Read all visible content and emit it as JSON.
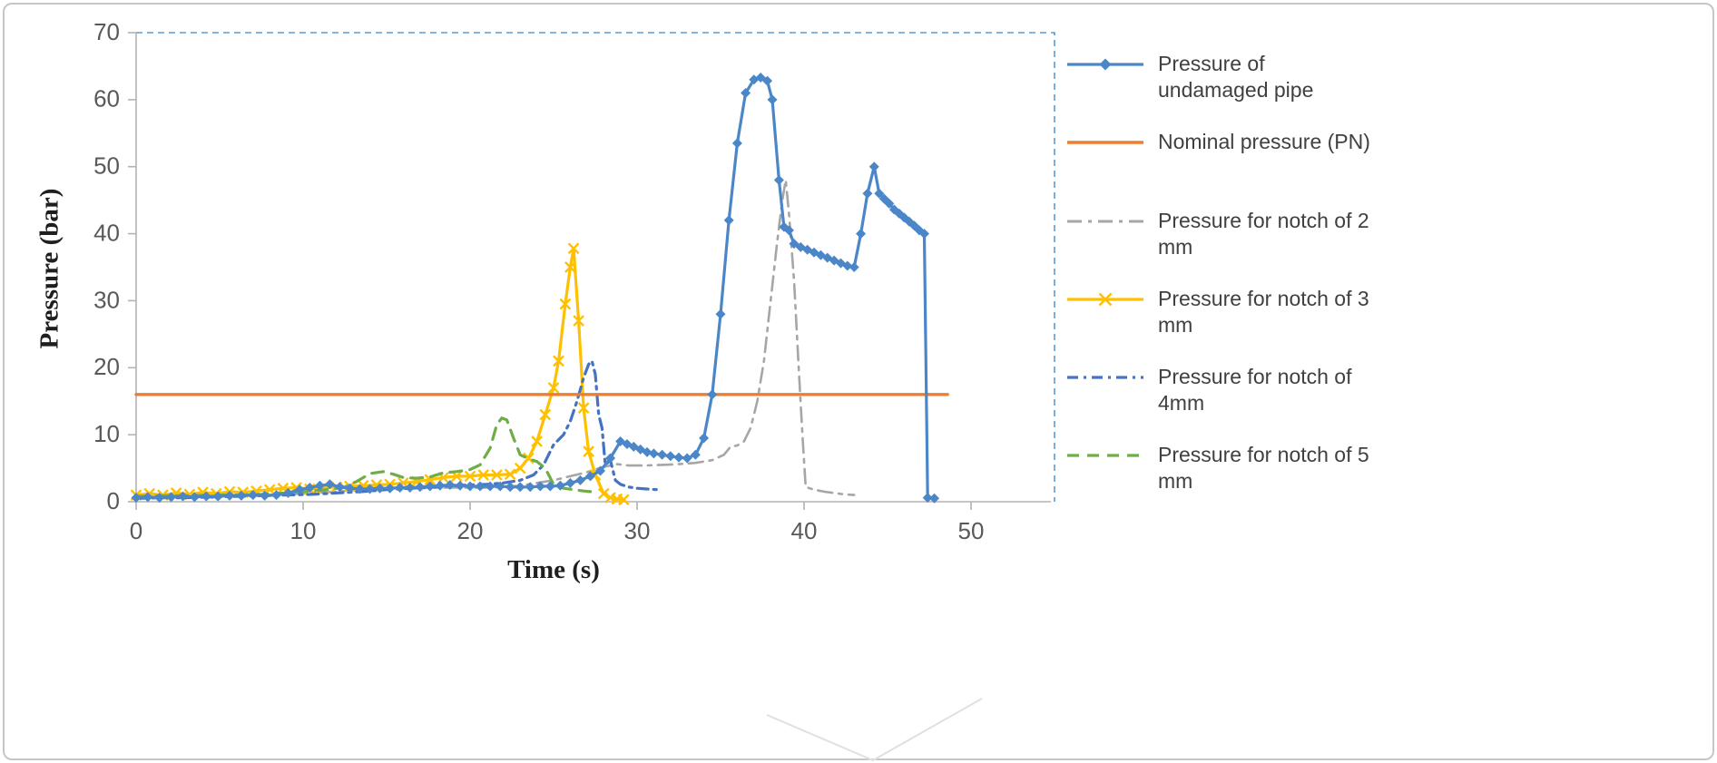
{
  "figure": {
    "background": "#ffffff",
    "frame_border_color": "#c6c6c6"
  },
  "chart_data": {
    "type": "line",
    "title": "",
    "xlabel": "Time (s)",
    "ylabel": "Pressure (bar)",
    "xlim": [
      0,
      55
    ],
    "ylim": [
      0,
      70
    ],
    "x_ticks": [
      0,
      10,
      20,
      30,
      40,
      50
    ],
    "y_ticks": [
      0,
      10,
      20,
      30,
      40,
      50,
      60,
      70
    ],
    "grid": false,
    "legend_position": "right",
    "styles": {
      "axis_line_color": "#b3b3b3",
      "tick_label_color": "#595959",
      "axis_title_color": "#1f1f1f",
      "legend_text_color": "#404040",
      "selection_border_color": "#5b9bd5",
      "watermark_color": "#e0e0e0"
    },
    "series": [
      {
        "id": "undamaged",
        "name": "Pressure of undamaged pipe",
        "label": "Pressure of\nundamaged pipe",
        "color": "#4a86c8",
        "dash": "",
        "marker": "diamond",
        "width": 3.2,
        "points": [
          [
            0,
            0.6
          ],
          [
            0.7,
            0.7
          ],
          [
            1.4,
            0.6
          ],
          [
            2.1,
            0.7
          ],
          [
            2.8,
            0.8
          ],
          [
            3.5,
            0.7
          ],
          [
            4.2,
            0.8
          ],
          [
            4.9,
            0.8
          ],
          [
            5.6,
            0.9
          ],
          [
            6.3,
            0.9
          ],
          [
            7,
            1
          ],
          [
            7.7,
            0.9
          ],
          [
            8.4,
            1
          ],
          [
            9.1,
            1.3
          ],
          [
            9.8,
            1.8
          ],
          [
            10.4,
            2.1
          ],
          [
            11,
            2.4
          ],
          [
            11.6,
            2.6
          ],
          [
            12.2,
            2.2
          ],
          [
            12.8,
            2
          ],
          [
            13.4,
            1.9
          ],
          [
            14,
            1.9
          ],
          [
            14.6,
            2
          ],
          [
            15.2,
            2
          ],
          [
            15.8,
            2.1
          ],
          [
            16.4,
            2.1
          ],
          [
            17,
            2.2
          ],
          [
            17.6,
            2.3
          ],
          [
            18.2,
            2.4
          ],
          [
            18.8,
            2.5
          ],
          [
            19.4,
            2.4
          ],
          [
            20,
            2.3
          ],
          [
            20.6,
            2.3
          ],
          [
            21.2,
            2.3
          ],
          [
            21.8,
            2.3
          ],
          [
            22.4,
            2.2
          ],
          [
            23,
            2.2
          ],
          [
            23.6,
            2.2
          ],
          [
            24.2,
            2.3
          ],
          [
            24.8,
            2.3
          ],
          [
            25.4,
            2.4
          ],
          [
            26,
            2.8
          ],
          [
            26.6,
            3.2
          ],
          [
            27.2,
            3.8
          ],
          [
            27.8,
            4.6
          ],
          [
            28.4,
            6.5
          ],
          [
            29,
            9
          ],
          [
            29.4,
            8.6
          ],
          [
            29.8,
            8.2
          ],
          [
            30.2,
            7.8
          ],
          [
            30.6,
            7.4
          ],
          [
            31,
            7.2
          ],
          [
            31.5,
            7
          ],
          [
            32,
            6.8
          ],
          [
            32.5,
            6.6
          ],
          [
            33,
            6.5
          ],
          [
            33.5,
            7
          ],
          [
            34,
            9.5
          ],
          [
            34.5,
            16
          ],
          [
            35,
            28
          ],
          [
            35.5,
            42
          ],
          [
            36,
            53.5
          ],
          [
            36.5,
            61
          ],
          [
            37,
            63
          ],
          [
            37.4,
            63.3
          ],
          [
            37.8,
            62.8
          ],
          [
            38.1,
            60
          ],
          [
            38.5,
            48
          ],
          [
            38.8,
            41
          ],
          [
            39.1,
            40.5
          ],
          [
            39.4,
            38.5
          ],
          [
            39.8,
            38
          ],
          [
            40.2,
            37.6
          ],
          [
            40.6,
            37.2
          ],
          [
            41,
            36.8
          ],
          [
            41.4,
            36.4
          ],
          [
            41.8,
            36
          ],
          [
            42.2,
            35.6
          ],
          [
            42.6,
            35.2
          ],
          [
            43,
            35
          ],
          [
            43.4,
            40
          ],
          [
            43.8,
            46
          ],
          [
            44.2,
            50
          ],
          [
            44.5,
            46
          ],
          [
            44.8,
            45.2
          ],
          [
            45.1,
            44.5
          ],
          [
            45.4,
            43.6
          ],
          [
            45.7,
            43
          ],
          [
            46,
            42.4
          ],
          [
            46.3,
            41.8
          ],
          [
            46.6,
            41.2
          ],
          [
            46.9,
            40.5
          ],
          [
            47.2,
            40
          ],
          [
            47.4,
            0.6
          ],
          [
            47.8,
            0.5
          ]
        ]
      },
      {
        "id": "nominal",
        "name": "Nominal pressure (PN)",
        "label": "Nominal pressure (PN)",
        "color": "#ed7d31",
        "dash": "",
        "marker": "none",
        "width": 3.4,
        "points": [
          [
            0,
            16
          ],
          [
            48.6,
            16
          ]
        ]
      },
      {
        "id": "notch-2mm",
        "name": "Pressure for notch of 2 mm",
        "label": "Pressure for notch of 2\nmm",
        "color": "#a6a6a6",
        "dash": "16 7 4 7",
        "marker": "none",
        "width": 2.6,
        "points": [
          [
            0,
            0.8
          ],
          [
            1.5,
            0.8
          ],
          [
            3,
            0.9
          ],
          [
            4.5,
            0.9
          ],
          [
            6,
            1
          ],
          [
            7.5,
            1
          ],
          [
            9,
            1.1
          ],
          [
            10.5,
            1.3
          ],
          [
            12,
            1.5
          ],
          [
            13.5,
            1.8
          ],
          [
            15,
            2
          ],
          [
            16.5,
            2
          ],
          [
            18,
            2.1
          ],
          [
            19.5,
            2.1
          ],
          [
            21,
            2.1
          ],
          [
            22,
            2.2
          ],
          [
            23,
            2.4
          ],
          [
            24,
            2.8
          ],
          [
            25,
            3.2
          ],
          [
            26,
            3.8
          ],
          [
            27,
            4.4
          ],
          [
            28,
            5.2
          ],
          [
            28.8,
            5.6
          ],
          [
            29.5,
            5.4
          ],
          [
            30.5,
            5.4
          ],
          [
            31.5,
            5.5
          ],
          [
            32.5,
            5.6
          ],
          [
            33.5,
            5.8
          ],
          [
            34.5,
            6.2
          ],
          [
            35.2,
            7
          ],
          [
            35.6,
            8.2
          ],
          [
            36,
            8.4
          ],
          [
            36.4,
            9
          ],
          [
            36.8,
            11
          ],
          [
            37.2,
            15
          ],
          [
            37.6,
            21
          ],
          [
            38,
            30
          ],
          [
            38.4,
            39
          ],
          [
            38.7,
            45
          ],
          [
            38.9,
            48
          ],
          [
            39.1,
            43
          ],
          [
            39.4,
            33
          ],
          [
            39.7,
            19
          ],
          [
            39.9,
            10
          ],
          [
            40.1,
            2.2
          ],
          [
            40.6,
            1.8
          ],
          [
            41.2,
            1.5
          ],
          [
            41.8,
            1.3
          ],
          [
            42.4,
            1.1
          ],
          [
            43,
            1
          ]
        ]
      },
      {
        "id": "notch-3mm",
        "name": "Pressure for notch of 3 mm",
        "label": "Pressure for notch of 3\nmm",
        "color": "#fec000",
        "dash": "",
        "marker": "x",
        "width": 3.2,
        "points": [
          [
            0,
            1
          ],
          [
            0.8,
            1.2
          ],
          [
            1.6,
            1
          ],
          [
            2.4,
            1.3
          ],
          [
            3.2,
            1.1
          ],
          [
            4,
            1.4
          ],
          [
            4.8,
            1.2
          ],
          [
            5.6,
            1.5
          ],
          [
            6.4,
            1.4
          ],
          [
            7.2,
            1.6
          ],
          [
            8,
            1.8
          ],
          [
            8.8,
            2
          ],
          [
            9.6,
            2.1
          ],
          [
            10.4,
            1.9
          ],
          [
            11.2,
            2.1
          ],
          [
            12,
            2.2
          ],
          [
            12.8,
            2.3
          ],
          [
            13.6,
            2.4
          ],
          [
            14.4,
            2.5
          ],
          [
            15.2,
            2.6
          ],
          [
            16,
            2.8
          ],
          [
            16.8,
            3
          ],
          [
            17.6,
            3.3
          ],
          [
            18.4,
            3.6
          ],
          [
            19.2,
            3.8
          ],
          [
            20,
            3.8
          ],
          [
            20.8,
            4
          ],
          [
            21.6,
            4
          ],
          [
            22.4,
            4.1
          ],
          [
            23,
            5
          ],
          [
            23.5,
            6.5
          ],
          [
            24,
            9
          ],
          [
            24.5,
            13
          ],
          [
            25,
            17
          ],
          [
            25.3,
            21
          ],
          [
            25.7,
            29.5
          ],
          [
            26,
            35
          ],
          [
            26.2,
            37.8
          ],
          [
            26.5,
            27
          ],
          [
            26.8,
            14
          ],
          [
            27.1,
            7.5
          ],
          [
            27.5,
            4
          ],
          [
            28,
            1.2
          ],
          [
            28.4,
            0.6
          ],
          [
            28.8,
            0.4
          ],
          [
            29.2,
            0.3
          ]
        ]
      },
      {
        "id": "notch-4mm",
        "name": "Pressure for notch of 4mm",
        "label": "Pressure for notch of\n4mm",
        "color": "#4472c4",
        "dash": "12 6 3 6",
        "marker": "none",
        "width": 3.2,
        "points": [
          [
            0,
            0.5
          ],
          [
            1.5,
            0.6
          ],
          [
            3,
            0.6
          ],
          [
            4.5,
            0.7
          ],
          [
            6,
            0.8
          ],
          [
            7.5,
            0.9
          ],
          [
            9,
            1
          ],
          [
            10.5,
            1.1
          ],
          [
            12,
            1.3
          ],
          [
            13.5,
            1.5
          ],
          [
            15,
            1.8
          ],
          [
            16.5,
            2
          ],
          [
            18,
            2.2
          ],
          [
            19,
            2.4
          ],
          [
            20,
            2.5
          ],
          [
            21,
            2.6
          ],
          [
            22,
            2.8
          ],
          [
            23,
            3.2
          ],
          [
            23.8,
            4
          ],
          [
            24.4,
            5.5
          ],
          [
            25,
            8.5
          ],
          [
            25.6,
            10
          ],
          [
            26,
            12
          ],
          [
            26.4,
            15
          ],
          [
            26.8,
            18.5
          ],
          [
            27.1,
            20.5
          ],
          [
            27.3,
            21
          ],
          [
            27.5,
            19
          ],
          [
            27.7,
            13
          ],
          [
            27.9,
            11
          ],
          [
            28.1,
            5.5
          ],
          [
            28.4,
            6.2
          ],
          [
            28.7,
            3.2
          ],
          [
            29,
            2.6
          ],
          [
            29.5,
            2.2
          ],
          [
            30,
            2
          ],
          [
            30.6,
            1.9
          ],
          [
            31.2,
            1.8
          ]
        ]
      },
      {
        "id": "notch-5mm",
        "name": "Pressure for notch of 5 mm",
        "label": "Pressure for notch of 5\nmm",
        "color": "#70ad47",
        "dash": "13 9",
        "marker": "none",
        "width": 3.2,
        "points": [
          [
            0,
            0.8
          ],
          [
            1.5,
            0.9
          ],
          [
            3,
            0.9
          ],
          [
            4.5,
            1
          ],
          [
            6,
            1
          ],
          [
            7.5,
            1.1
          ],
          [
            9,
            1.3
          ],
          [
            10.5,
            1.6
          ],
          [
            11.5,
            1.8
          ],
          [
            12.5,
            2.2
          ],
          [
            13.2,
            3
          ],
          [
            14,
            4.2
          ],
          [
            14.8,
            4.5
          ],
          [
            15.4,
            4.1
          ],
          [
            16,
            3.6
          ],
          [
            16.8,
            3.5
          ],
          [
            17.6,
            3.7
          ],
          [
            18.4,
            4.3
          ],
          [
            19.2,
            4.5
          ],
          [
            20,
            4.8
          ],
          [
            20.6,
            5.5
          ],
          [
            21.2,
            8
          ],
          [
            21.6,
            11.5
          ],
          [
            21.9,
            12.5
          ],
          [
            22.2,
            12.2
          ],
          [
            22.6,
            9.5
          ],
          [
            23,
            7
          ],
          [
            23.5,
            6.4
          ],
          [
            24,
            6
          ],
          [
            24.5,
            5
          ],
          [
            25,
            2.6
          ],
          [
            25.6,
            2
          ],
          [
            26.2,
            1.8
          ],
          [
            26.8,
            1.6
          ],
          [
            27.2,
            1.5
          ]
        ]
      }
    ]
  }
}
